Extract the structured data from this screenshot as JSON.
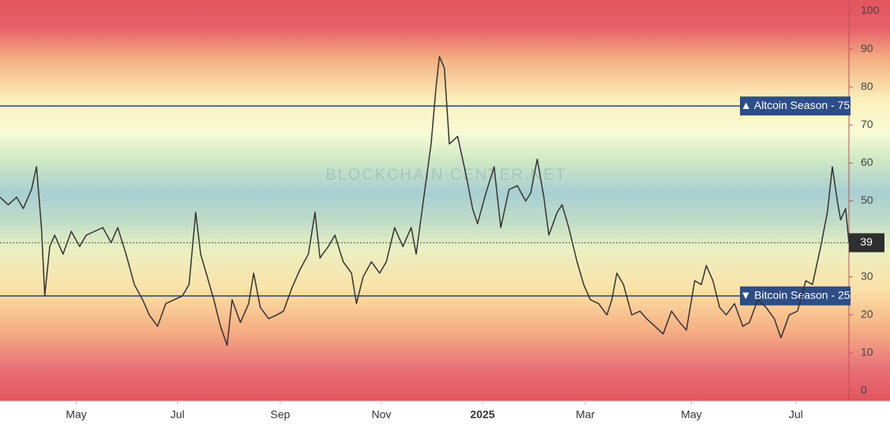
{
  "chart_data": {
    "type": "line",
    "watermark": "BLOCKCHAIN CENTER.NET",
    "x": [
      0,
      5,
      10,
      14,
      19,
      22,
      25,
      27,
      30,
      33,
      38,
      43,
      48,
      52,
      57,
      62,
      67,
      71,
      76,
      81,
      86,
      90,
      95,
      100,
      105,
      110,
      114,
      118,
      121,
      125,
      129,
      133,
      137,
      140,
      145,
      150,
      153,
      157,
      162,
      167,
      171,
      176,
      181,
      186,
      190,
      193,
      198,
      202,
      207,
      212,
      215,
      219,
      224,
      229,
      233,
      238,
      243,
      248,
      251,
      255,
      260,
      263,
      265,
      268,
      271,
      276,
      281,
      285,
      288,
      293,
      298,
      302,
      307,
      312,
      317,
      320,
      324,
      328,
      331,
      336,
      339,
      343,
      348,
      352,
      356,
      361,
      366,
      369,
      372,
      376,
      381,
      386,
      390,
      395,
      400,
      405,
      410,
      414,
      419,
      423,
      426,
      430,
      434,
      438,
      443,
      448,
      452,
      457,
      462,
      467,
      471,
      476,
      481,
      486,
      490,
      495,
      499,
      502,
      505,
      507,
      510,
      512
    ],
    "values": [
      51,
      49,
      51,
      48,
      53,
      59,
      43,
      25,
      38,
      41,
      36,
      42,
      38,
      41,
      42,
      43,
      39,
      43,
      36,
      28,
      24,
      20,
      17,
      23,
      24,
      25,
      28,
      47,
      36,
      30,
      24,
      17,
      12,
      24,
      18,
      23,
      31,
      22,
      19,
      20,
      21,
      27,
      32,
      36,
      47,
      35,
      38,
      41,
      34,
      31,
      23,
      30,
      34,
      31,
      34,
      43,
      38,
      43,
      36,
      49,
      65,
      80,
      88,
      85,
      65,
      67,
      57,
      48,
      44,
      52,
      59,
      43,
      53,
      54,
      50,
      52,
      61,
      51,
      41,
      47,
      49,
      43,
      34,
      28,
      24,
      23,
      20,
      24,
      31,
      28,
      20,
      21,
      19,
      17,
      15,
      21,
      18,
      16,
      29,
      28,
      33,
      29,
      22,
      20,
      23,
      17,
      18,
      24,
      22,
      19,
      14,
      20,
      21,
      29,
      28,
      38,
      47,
      59,
      50,
      45,
      48,
      39
    ],
    "color": "#333333",
    "xlim": [
      0,
      512
    ],
    "xticks": [
      {
        "value": 46,
        "label": "May"
      },
      {
        "value": 107,
        "label": "Jul"
      },
      {
        "value": 169,
        "label": "Sep"
      },
      {
        "value": 230,
        "label": "Nov"
      },
      {
        "value": 291,
        "label": "2025"
      },
      {
        "value": 353,
        "label": "Mar"
      },
      {
        "value": 417,
        "label": "May"
      },
      {
        "value": 480,
        "label": "Jul"
      }
    ],
    "ylim": [
      -2.7,
      102.9
    ],
    "yticks": [
      0,
      10,
      20,
      30,
      40,
      50,
      60,
      70,
      80,
      90,
      100
    ],
    "hlines": [
      {
        "value": 75,
        "label": "▲ Altcoin Season - 75"
      },
      {
        "value": 25,
        "label": "▼ Bitcoin Season - 25"
      }
    ]
  }
}
